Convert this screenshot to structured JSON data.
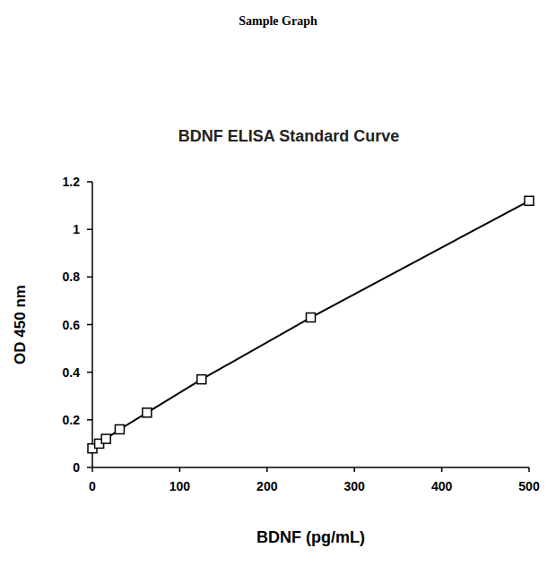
{
  "chart_data": {
    "type": "line",
    "subtitle": "Sample Graph",
    "title": "BDNF ELISA Standard Curve",
    "x_label": "BDNF (pg/mL)",
    "y_label": "OD 450 nm",
    "x": [
      0,
      7.8,
      15.6,
      31.25,
      62.5,
      125,
      250,
      500
    ],
    "values": [
      0.08,
      0.1,
      0.12,
      0.16,
      0.23,
      0.37,
      0.63,
      1.12
    ],
    "color": "#000000",
    "marker": "square",
    "line_style": "solid",
    "xlim": [
      0,
      500
    ],
    "xticks": [
      0,
      100,
      200,
      300,
      400,
      500
    ],
    "ylim": [
      0,
      1.2
    ],
    "yticks": [
      0,
      0.2,
      0.4,
      0.6,
      0.8,
      1,
      1.2
    ],
    "grid": false
  }
}
